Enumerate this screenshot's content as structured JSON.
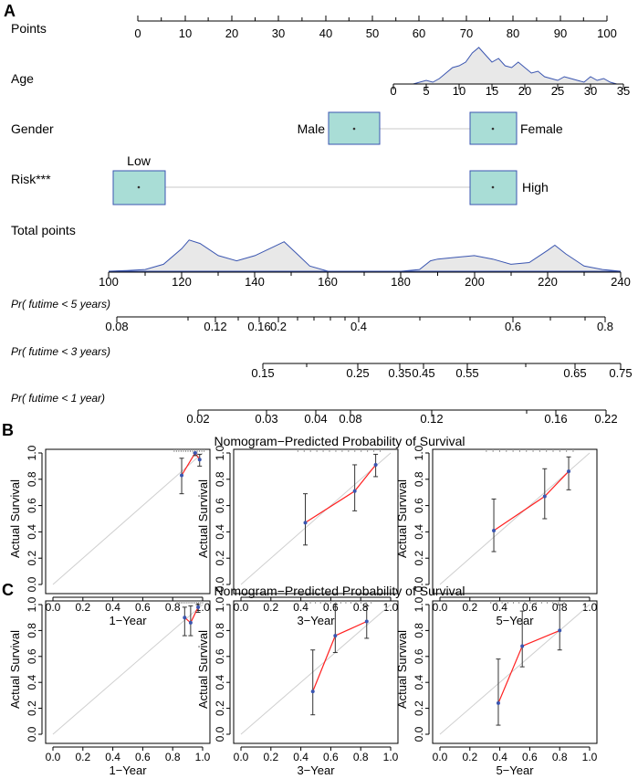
{
  "panel_labels": {
    "a": "A",
    "b": "B",
    "c": "C"
  },
  "chart_data": [
    {
      "type": "nomogram",
      "panel": "A",
      "rows": [
        {
          "name": "Points",
          "ticks": [
            "0",
            "10",
            "20",
            "30",
            "40",
            "50",
            "60",
            "70",
            "80",
            "90",
            "100"
          ]
        },
        {
          "name": "Age",
          "ticks": [
            "0",
            "5",
            "10",
            "15",
            "20",
            "25",
            "30",
            "35"
          ]
        },
        {
          "name": "Gender",
          "levels": [
            "Male",
            "Female"
          ],
          "points": [
            46,
            76
          ]
        },
        {
          "name": "Risk***",
          "levels": [
            "Low",
            "High"
          ],
          "points": [
            0,
            76
          ]
        },
        {
          "name": "Total points",
          "ticks": [
            "100",
            "120",
            "140",
            "160",
            "180",
            "200",
            "220",
            "240"
          ]
        },
        {
          "name": "Pr( futime < 5 years)",
          "ticks": [
            "0.08",
            "0.12",
            "0.16",
            "0.2",
            "0.4",
            "0.6",
            "0.8"
          ]
        },
        {
          "name": "Pr( futime < 3 years)",
          "ticks": [
            "0.15",
            "0.25",
            "0.35",
            "0.45",
            "0.55",
            "0.65",
            "0.75"
          ]
        },
        {
          "name": "Pr( futime < 1 year)",
          "ticks": [
            "0.02",
            "0.03",
            "0.04",
            "0.08",
            "0.12",
            "0.16",
            "0.22"
          ]
        }
      ],
      "age_distribution": {
        "x": [
          0,
          1,
          2,
          3,
          4,
          5,
          6,
          7,
          8,
          9,
          10,
          11,
          12,
          13,
          14,
          15,
          16,
          17,
          18,
          19,
          20,
          21,
          22,
          23,
          24,
          25,
          26,
          27,
          28,
          29,
          30,
          31,
          32,
          33,
          34,
          35
        ],
        "density": [
          0,
          0,
          0,
          0,
          0.05,
          0.1,
          0.05,
          0.15,
          0.3,
          0.45,
          0.5,
          0.6,
          0.85,
          1.0,
          0.8,
          0.6,
          0.7,
          0.5,
          0.45,
          0.6,
          0.45,
          0.3,
          0.35,
          0.2,
          0.15,
          0.1,
          0.2,
          0.15,
          0.1,
          0.05,
          0.2,
          0.1,
          0.15,
          0.05,
          0,
          0
        ]
      },
      "total_points_distribution": {
        "x": [
          100,
          105,
          110,
          115,
          120,
          122,
          125,
          130,
          135,
          140,
          145,
          148,
          152,
          155,
          160,
          165,
          170,
          175,
          180,
          185,
          188,
          190,
          195,
          200,
          205,
          210,
          215,
          220,
          222,
          225,
          230,
          235,
          240
        ],
        "density": [
          0,
          0.02,
          0.05,
          0.2,
          0.65,
          0.9,
          0.8,
          0.45,
          0.3,
          0.45,
          0.7,
          0.85,
          0.45,
          0.15,
          0,
          0,
          0,
          0,
          0,
          0.05,
          0.3,
          0.35,
          0.4,
          0.45,
          0.35,
          0.2,
          0.25,
          0.6,
          0.75,
          0.5,
          0.15,
          0.05,
          0
        ]
      }
    },
    {
      "type": "calibration",
      "panel": "B",
      "title": "Nomogram−Predicted Probability of Survival",
      "ylabel": "Actual Survival",
      "xlim": [
        0,
        1
      ],
      "ylim": [
        0,
        1
      ],
      "ticks": [
        "0.0",
        "0.2",
        "0.4",
        "0.6",
        "0.8",
        "1.0"
      ],
      "plots": [
        {
          "xlabel": "1−Year",
          "points": [
            {
              "x": 0.86,
              "y": 0.83,
              "lo": 0.69,
              "hi": 0.96
            },
            {
              "x": 0.95,
              "y": 1.0,
              "lo": 0.98,
              "hi": 1.0
            },
            {
              "x": 0.98,
              "y": 0.95,
              "lo": 0.9,
              "hi": 0.99
            }
          ]
        },
        {
          "xlabel": "3−Year",
          "points": [
            {
              "x": 0.43,
              "y": 0.47,
              "lo": 0.3,
              "hi": 0.69
            },
            {
              "x": 0.76,
              "y": 0.71,
              "lo": 0.56,
              "hi": 0.91
            },
            {
              "x": 0.9,
              "y": 0.91,
              "lo": 0.82,
              "hi": 0.99
            }
          ]
        },
        {
          "xlabel": "5−Year",
          "points": [
            {
              "x": 0.36,
              "y": 0.41,
              "lo": 0.25,
              "hi": 0.65
            },
            {
              "x": 0.7,
              "y": 0.67,
              "lo": 0.5,
              "hi": 0.88
            },
            {
              "x": 0.86,
              "y": 0.86,
              "lo": 0.72,
              "hi": 0.97
            }
          ]
        }
      ]
    },
    {
      "type": "calibration",
      "panel": "C",
      "title": "Nomogram−Predicted Probability of Survival",
      "ylabel": "Actual Survival",
      "xlim": [
        0,
        1
      ],
      "ylim": [
        0,
        1
      ],
      "ticks": [
        "0.0",
        "0.2",
        "0.4",
        "0.6",
        "0.8",
        "1.0"
      ],
      "plots": [
        {
          "xlabel": "1−Year",
          "points": [
            {
              "x": 0.88,
              "y": 0.9,
              "lo": 0.76,
              "hi": 0.98
            },
            {
              "x": 0.92,
              "y": 0.86,
              "lo": 0.76,
              "hi": 0.99
            },
            {
              "x": 0.97,
              "y": 0.98,
              "lo": 0.94,
              "hi": 1.0
            }
          ]
        },
        {
          "xlabel": "3−Year",
          "points": [
            {
              "x": 0.48,
              "y": 0.33,
              "lo": 0.15,
              "hi": 0.65
            },
            {
              "x": 0.63,
              "y": 0.76,
              "lo": 0.63,
              "hi": 1.0
            },
            {
              "x": 0.84,
              "y": 0.87,
              "lo": 0.74,
              "hi": 0.99
            }
          ]
        },
        {
          "xlabel": "5−Year",
          "points": [
            {
              "x": 0.39,
              "y": 0.24,
              "lo": 0.07,
              "hi": 0.58
            },
            {
              "x": 0.55,
              "y": 0.68,
              "lo": 0.52,
              "hi": 0.95
            },
            {
              "x": 0.8,
              "y": 0.8,
              "lo": 0.65,
              "hi": 1.0
            }
          ]
        }
      ]
    }
  ]
}
